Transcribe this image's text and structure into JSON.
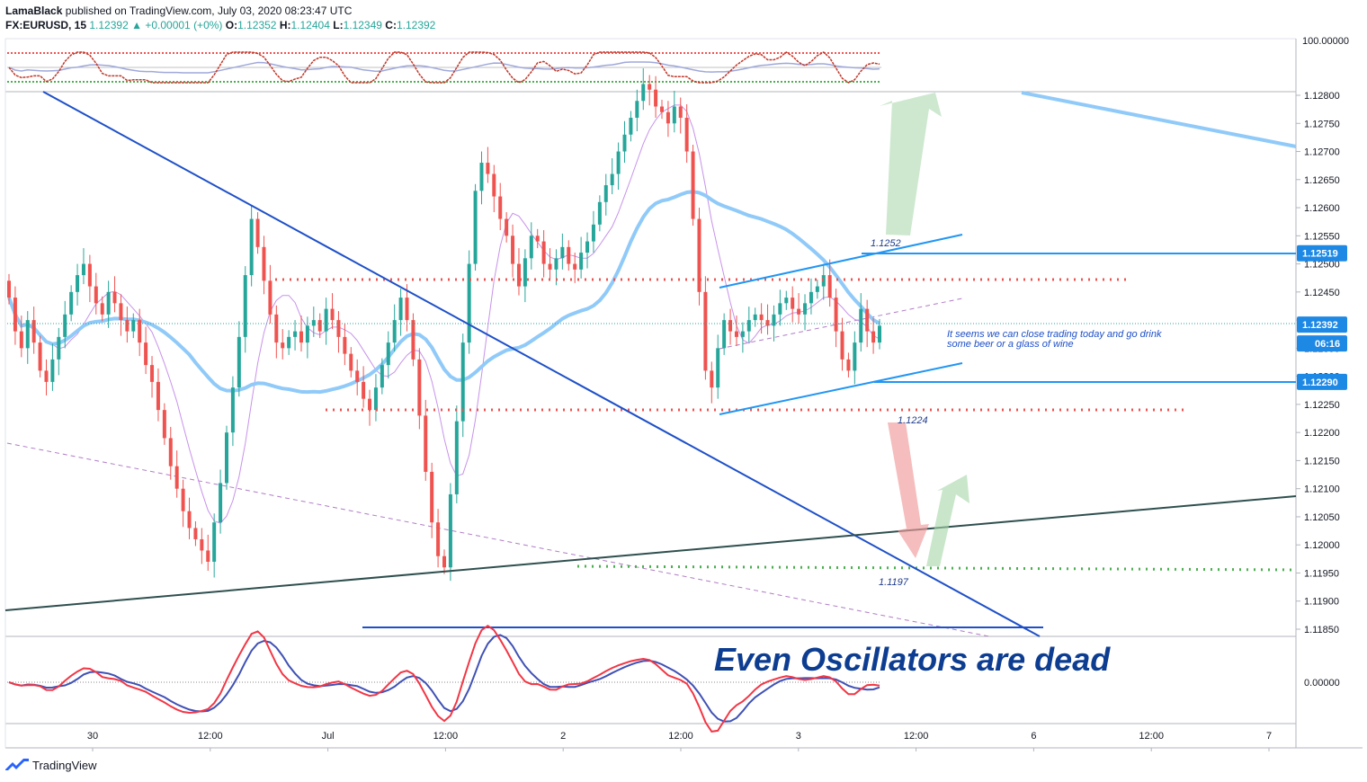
{
  "header": {
    "author": "LamaBlack",
    "published": "published on TradingView.com, July 03, 2020 08:23:47 UTC",
    "symbol": "FX:EURUSD, 15",
    "last": "1.12392",
    "arrow": "▲",
    "change": "+0.00001 (+0%)",
    "o_label": "O:",
    "o_val": "1.12352",
    "h_label": "H:",
    "h_val": "1.12404",
    "l_label": "L:",
    "l_val": "1.12349",
    "c_label": "C:",
    "c_val": "1.12392"
  },
  "footer": {
    "brand": "TradingView"
  },
  "colors": {
    "up": "#26a69a",
    "down": "#ef5350",
    "ma_fast": "#c792ea",
    "ma_slow": "#90caf9",
    "trend_blue": "#1e50c8",
    "label_blue": "#2196f3",
    "green_line": "#2f4f4f",
    "red_dots": "#ef5350",
    "green_dots": "#4caf50",
    "osc_red": "#f23645",
    "osc_blue": "#3f51b5"
  },
  "chart_data": {
    "type": "candlestick",
    "symbol": "EURUSD",
    "ylim": [
      1.1182,
      1.1288
    ],
    "y_ticks": [
      "1.12800",
      "1.12750",
      "1.12700",
      "1.12650",
      "1.12600",
      "1.12550",
      "1.12500",
      "1.12450",
      "1.12400",
      "1.12350",
      "1.12300",
      "1.12250",
      "1.12200",
      "1.12150",
      "1.12100",
      "1.12050",
      "1.12000",
      "1.11950",
      "1.11900",
      "1.11850"
    ],
    "x_ticks": [
      "30",
      "12:00",
      "Jul",
      "12:00",
      "2",
      "12:00",
      "3",
      "12:00",
      "6",
      "12:00",
      "7"
    ],
    "price_labels": [
      {
        "value": 1.12519,
        "text": "1.12519"
      },
      {
        "value": 1.12392,
        "text": "1.12392"
      },
      {
        "value": 1.1229,
        "text": "1.12290"
      }
    ],
    "countdown": "06:16",
    "top_panel_tick": "100.00000",
    "bottom_panel_tick": "0.00000",
    "annotations": {
      "level_high": "1.1252",
      "level_low": "1.1224",
      "level_target": "1.1197",
      "note": "It seems we can close trading today and go drink some beer or a glass of wine",
      "headline": "Even Oscillators are dead"
    },
    "closes": [
      1.1244,
      1.1238,
      1.1235,
      1.124,
      1.1236,
      1.1231,
      1.1229,
      1.1233,
      1.1237,
      1.1241,
      1.1245,
      1.1248,
      1.125,
      1.1246,
      1.1243,
      1.1241,
      1.1245,
      1.1243,
      1.124,
      1.1238,
      1.124,
      1.1236,
      1.1232,
      1.1229,
      1.1224,
      1.1219,
      1.1214,
      1.121,
      1.1206,
      1.1203,
      1.1201,
      1.1199,
      1.1197,
      1.1204,
      1.1211,
      1.122,
      1.1228,
      1.1237,
      1.1248,
      1.1258,
      1.1253,
      1.1247,
      1.1241,
      1.1236,
      1.1235,
      1.1237,
      1.1238,
      1.1236,
      1.1239,
      1.124,
      1.1238,
      1.1242,
      1.124,
      1.1237,
      1.1234,
      1.1231,
      1.1229,
      1.1226,
      1.1224,
      1.1228,
      1.1232,
      1.1236,
      1.124,
      1.1244,
      1.124,
      1.1233,
      1.1223,
      1.1213,
      1.1204,
      1.1198,
      1.1196,
      1.1209,
      1.1222,
      1.1236,
      1.125,
      1.1263,
      1.1268,
      1.1266,
      1.1262,
      1.1258,
      1.1255,
      1.125,
      1.1246,
      1.1251,
      1.1255,
      1.1254,
      1.125,
      1.1249,
      1.1251,
      1.1253,
      1.125,
      1.1249,
      1.1252,
      1.1254,
      1.1257,
      1.1261,
      1.1264,
      1.1266,
      1.127,
      1.1273,
      1.1276,
      1.1279,
      1.1282,
      1.1281,
      1.1278,
      1.1277,
      1.1275,
      1.1278,
      1.1276,
      1.127,
      1.1258,
      1.1245,
      1.1231,
      1.1228,
      1.1235,
      1.124,
      1.1238,
      1.1237,
      1.1238,
      1.124,
      1.1241,
      1.124,
      1.1239,
      1.1241,
      1.1243,
      1.1244,
      1.1242,
      1.1241,
      1.1243,
      1.1245,
      1.1246,
      1.1248,
      1.1244,
      1.1238,
      1.1233,
      1.1231,
      1.1236,
      1.1242,
      1.1238,
      1.1236,
      1.1239
    ]
  }
}
